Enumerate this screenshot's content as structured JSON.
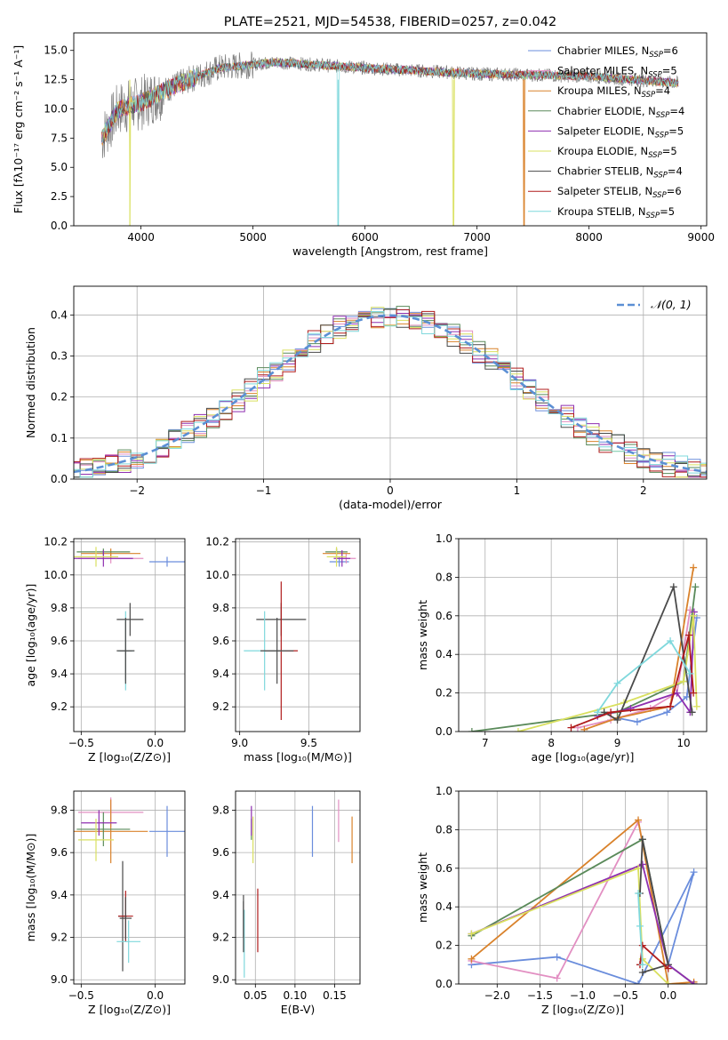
{
  "colors": [
    "#6a8ddc",
    "#e28fc2",
    "#d9822b",
    "#5a8a5a",
    "#8e2fb0",
    "#d9e060",
    "#4a4a4a",
    "#b01c1c",
    "#7fd8dc"
  ],
  "chart_data": [
    {
      "id": "spectrum",
      "type": "line",
      "title": "PLATE=2521, MJD=54538, FIBERID=0257, z=0.042",
      "xlabel": "wavelength [Angstrom, rest frame]",
      "ylabel": "Flux [fλ10⁻¹⁷ erg cm⁻² s⁻¹ A⁻¹]",
      "xlim": [
        3400,
        9050
      ],
      "ylim": [
        0,
        16.5
      ],
      "xticks": [
        4000,
        5000,
        6000,
        7000,
        8000,
        9000
      ],
      "yticks": [
        0.0,
        2.5,
        5.0,
        7.5,
        10.0,
        12.5,
        15.0
      ],
      "xtick_labels": [
        "4000",
        "5000",
        "6000",
        "7000",
        "8000",
        "9000"
      ],
      "ytick_labels": [
        "0.0",
        "2.5",
        "5.0",
        "7.5",
        "10.0",
        "12.5",
        "15.0"
      ],
      "legend_placement": "upper-right",
      "legend": [
        {
          "main": "Chabrier MILES, N",
          "sub": "SSP",
          "tail": "=6"
        },
        {
          "main": "Salpeter MILES, N",
          "sub": "SSP",
          "tail": "=5"
        },
        {
          "main": "Kroupa MILES, N",
          "sub": "SSP",
          "tail": "=4"
        },
        {
          "main": "Chabrier ELODIE, N",
          "sub": "SSP",
          "tail": "=4"
        },
        {
          "main": "Salpeter ELODIE, N",
          "sub": "SSP",
          "tail": "=5"
        },
        {
          "main": "Kroupa ELODIE, N",
          "sub": "SSP",
          "tail": "=5"
        },
        {
          "main": "Chabrier STELIB, N",
          "sub": "SSP",
          "tail": "=4"
        },
        {
          "main": "Salpeter STELIB, N",
          "sub": "SSP",
          "tail": "=6"
        },
        {
          "main": "Kroupa STELIB, N",
          "sub": "SSP",
          "tail": "=5"
        }
      ],
      "data_line": {
        "color": "#808080",
        "x_range": [
          3650,
          8800
        ],
        "note_mean": [
          [
            3650,
            7.5
          ],
          [
            3800,
            10
          ],
          [
            4000,
            10.5
          ],
          [
            4300,
            12
          ],
          [
            4700,
            13.5
          ],
          [
            5200,
            14
          ],
          [
            6000,
            13.5
          ],
          [
            7000,
            13
          ],
          [
            8000,
            12.8
          ],
          [
            8800,
            12.2
          ]
        ]
      },
      "model_range_x": [
        3650,
        8800
      ],
      "dips": [
        {
          "x": 3900,
          "series": 5
        },
        {
          "x": 5760,
          "series": 8
        },
        {
          "x": 6790,
          "series": 5
        },
        {
          "x": 7420,
          "series": 2
        }
      ]
    },
    {
      "id": "residuals",
      "type": "histogram",
      "xlabel": "(data-model)/error",
      "ylabel": "Normed distribution",
      "xlim": [
        -2.5,
        2.5
      ],
      "ylim": [
        0,
        0.47
      ],
      "xticks": [
        -2,
        -1,
        0,
        1,
        2
      ],
      "yticks": [
        0.0,
        0.1,
        0.2,
        0.3,
        0.4
      ],
      "xtick_labels": [
        "−2",
        "−1",
        "0",
        "1",
        "2"
      ],
      "ytick_labels": [
        "0.0",
        "0.1",
        "0.2",
        "0.3",
        "0.4"
      ],
      "grid": true,
      "legend": "𝒩(0, 1)",
      "legend_placement": "upper-right",
      "gaussian": {
        "mu": 0,
        "sigma": 1,
        "color": "#5b8fd4"
      },
      "bin_width": 0.1
    },
    {
      "id": "age-z",
      "type": "scatter-errorbar",
      "xlabel": "Z [log₁₀(Z/Z⊙)]",
      "ylabel": "age  [log₁₀(age/yr)]",
      "xlim": [
        -0.55,
        0.2
      ],
      "ylim": [
        9.05,
        10.22
      ],
      "xticks": [
        -0.5,
        0.0
      ],
      "yticks": [
        9.2,
        9.4,
        9.6,
        9.8,
        10.0,
        10.2
      ],
      "xtick_labels": [
        "−0.5",
        "0.0"
      ],
      "ytick_labels": [
        "9.2",
        "9.4",
        "9.6",
        "9.8",
        "10.0",
        "10.2"
      ],
      "points": [
        {
          "s": 0,
          "x": 0.08,
          "y": 10.08,
          "xe": 0.12,
          "ye": 0.03
        },
        {
          "s": 1,
          "x": -0.3,
          "y": 10.1,
          "xe": 0.22,
          "ye": 0.03
        },
        {
          "s": 2,
          "x": -0.3,
          "y": 10.13,
          "xe": 0.2,
          "ye": 0.03
        },
        {
          "s": 3,
          "x": -0.35,
          "y": 10.14,
          "xe": 0.18,
          "ye": 0.02
        },
        {
          "s": 4,
          "x": -0.35,
          "y": 10.1,
          "xe": 0.2,
          "ye": 0.05
        },
        {
          "s": 5,
          "x": -0.4,
          "y": 10.11,
          "xe": 0.15,
          "ye": 0.06
        },
        {
          "s": 6,
          "x": -0.17,
          "y": 9.73,
          "xe": 0.09,
          "ye": 0.1
        },
        {
          "s": 7,
          "x": -0.2,
          "y": 9.54,
          "xe": 0.04,
          "ye": 0.18
        },
        {
          "s": 8,
          "x": -0.2,
          "y": 9.54,
          "xe": 0.05,
          "ye": 0.24
        },
        {
          "s": 6,
          "x": -0.2,
          "y": 9.54,
          "xe": 0.06,
          "ye": 0.2
        }
      ]
    },
    {
      "id": "age-mass",
      "type": "scatter-errorbar",
      "xlabel": "mass [log₁₀(M/M⊙)]",
      "ylabel": "",
      "xlim": [
        8.97,
        9.87
      ],
      "ylim": [
        9.05,
        10.22
      ],
      "xticks": [
        9.0,
        9.5
      ],
      "yticks": [
        9.2,
        9.4,
        9.6,
        9.8,
        10.0,
        10.2
      ],
      "xtick_labels": [
        "9.0",
        "9.5"
      ],
      "ytick_labels": [
        "9.2",
        "9.4",
        "9.6",
        "9.8",
        "10.0",
        "10.2"
      ],
      "points": [
        {
          "s": 0,
          "x": 9.72,
          "y": 10.08,
          "xe": 0.07,
          "ye": 0.03
        },
        {
          "s": 1,
          "x": 9.77,
          "y": 10.1,
          "xe": 0.07,
          "ye": 0.03
        },
        {
          "s": 2,
          "x": 9.7,
          "y": 10.13,
          "xe": 0.1,
          "ye": 0.03
        },
        {
          "s": 3,
          "x": 9.7,
          "y": 10.14,
          "xe": 0.08,
          "ye": 0.02
        },
        {
          "s": 4,
          "x": 9.74,
          "y": 10.1,
          "xe": 0.06,
          "ye": 0.05
        },
        {
          "s": 5,
          "x": 9.7,
          "y": 10.11,
          "xe": 0.07,
          "ye": 0.06
        },
        {
          "s": 6,
          "x": 9.3,
          "y": 9.73,
          "xe": 0.18,
          "ye": 0.1
        },
        {
          "s": 7,
          "x": 9.3,
          "y": 9.54,
          "xe": 0.12,
          "ye": 0.42
        },
        {
          "s": 8,
          "x": 9.18,
          "y": 9.54,
          "xe": 0.15,
          "ye": 0.24
        },
        {
          "s": 6,
          "x": 9.27,
          "y": 9.54,
          "xe": 0.12,
          "ye": 0.2
        }
      ]
    },
    {
      "id": "massweight-age",
      "type": "line",
      "xlabel": "age  [log₁₀(age/yr)]",
      "ylabel": "mass weight",
      "xlim": [
        6.6,
        10.35
      ],
      "ylim": [
        0,
        1.0
      ],
      "xticks": [
        7,
        8,
        9,
        10
      ],
      "yticks": [
        0.0,
        0.2,
        0.4,
        0.6,
        0.8,
        1.0
      ],
      "xtick_labels": [
        "7",
        "8",
        "9",
        "10"
      ],
      "ytick_labels": [
        "0.0",
        "0.2",
        "0.4",
        "0.6",
        "0.8",
        "1.0"
      ],
      "grid": true,
      "series": [
        {
          "s": 0,
          "x": [
            9.0,
            9.3,
            9.75,
            10.05,
            10.2
          ],
          "y": [
            0.07,
            0.05,
            0.1,
            0.18,
            0.59
          ]
        },
        {
          "s": 1,
          "x": [
            8.4,
            8.9,
            9.5,
            9.9,
            10.1
          ],
          "y": [
            0.02,
            0.06,
            0.12,
            0.2,
            0.63
          ]
        },
        {
          "s": 2,
          "x": [
            8.5,
            9.0,
            9.8,
            10.15
          ],
          "y": [
            0.01,
            0.07,
            0.13,
            0.85
          ]
        },
        {
          "s": 3,
          "x": [
            6.8,
            9.0,
            10.0,
            10.18
          ],
          "y": [
            0.0,
            0.1,
            0.26,
            0.75
          ]
        },
        {
          "s": 4,
          "x": [
            8.7,
            9.2,
            9.9,
            10.1,
            10.16
          ],
          "y": [
            0.08,
            0.12,
            0.2,
            0.1,
            0.62
          ]
        },
        {
          "s": 5,
          "x": [
            7.5,
            9.1,
            10.0,
            10.15,
            10.2
          ],
          "y": [
            0.0,
            0.15,
            0.26,
            0.6,
            0.13
          ]
        },
        {
          "s": 6,
          "x": [
            8.8,
            9.0,
            9.85,
            10.13
          ],
          "y": [
            0.1,
            0.06,
            0.75,
            0.1
          ]
        },
        {
          "s": 7,
          "x": [
            8.3,
            8.9,
            9.8,
            10.08,
            10.15
          ],
          "y": [
            0.02,
            0.1,
            0.13,
            0.5,
            0.2
          ]
        },
        {
          "s": 8,
          "x": [
            8.7,
            9.0,
            9.8,
            10.1
          ],
          "y": [
            0.1,
            0.25,
            0.47,
            0.3
          ]
        }
      ]
    },
    {
      "id": "mass-z",
      "type": "scatter-errorbar",
      "xlabel": "Z [log₁₀(Z/Z⊙)]",
      "ylabel": "mass [log₁₀(M/M⊙)]",
      "xlim": [
        -0.55,
        0.2
      ],
      "ylim": [
        8.98,
        9.89
      ],
      "xticks": [
        -0.5,
        0.0
      ],
      "yticks": [
        9.0,
        9.2,
        9.4,
        9.6,
        9.8
      ],
      "xtick_labels": [
        "−0.5",
        "0.0"
      ],
      "ytick_labels": [
        "9.0",
        "9.2",
        "9.4",
        "9.6",
        "9.8"
      ],
      "points": [
        {
          "s": 0,
          "x": 0.08,
          "y": 9.7,
          "xe": 0.12,
          "ye": 0.12
        },
        {
          "s": 1,
          "x": -0.3,
          "y": 9.79,
          "xe": 0.22,
          "ye": 0.07
        },
        {
          "s": 2,
          "x": -0.3,
          "y": 9.7,
          "xe": 0.25,
          "ye": 0.15
        },
        {
          "s": 3,
          "x": -0.35,
          "y": 9.71,
          "xe": 0.18,
          "ye": 0.08
        },
        {
          "s": 4,
          "x": -0.38,
          "y": 9.74,
          "xe": 0.12,
          "ye": 0.06
        },
        {
          "s": 5,
          "x": -0.4,
          "y": 9.66,
          "xe": 0.12,
          "ye": 0.1
        },
        {
          "s": 6,
          "x": -0.22,
          "y": 9.3,
          "xe": 0.03,
          "ye": 0.26
        },
        {
          "s": 7,
          "x": -0.2,
          "y": 9.3,
          "xe": 0.05,
          "ye": 0.12
        },
        {
          "s": 8,
          "x": -0.18,
          "y": 9.18,
          "xe": 0.08,
          "ye": 0.1
        },
        {
          "s": 6,
          "x": -0.2,
          "y": 9.29,
          "xe": 0.04,
          "ye": 0.1
        }
      ]
    },
    {
      "id": "mass-ebv",
      "type": "scatter-errorbar",
      "xlabel": "E(B-V)",
      "ylabel": "",
      "xlim": [
        0.025,
        0.182
      ],
      "ylim": [
        8.98,
        9.89
      ],
      "xticks": [
        0.05,
        0.1,
        0.15
      ],
      "yticks": [
        9.0,
        9.2,
        9.4,
        9.6,
        9.8
      ],
      "xtick_labels": [
        "0.05",
        "0.10",
        "0.15"
      ],
      "ytick_labels": [
        "9.0",
        "9.2",
        "9.4",
        "9.6",
        "9.8"
      ],
      "points": [
        {
          "s": 0,
          "x": 0.122,
          "y": 9.7,
          "xe": 0,
          "ye": 0.12
        },
        {
          "s": 1,
          "x": 0.155,
          "y": 9.75,
          "xe": 0,
          "ye": 0.1
        },
        {
          "s": 2,
          "x": 0.172,
          "y": 9.66,
          "xe": 0,
          "ye": 0.11
        },
        {
          "s": 3,
          "x": 0.045,
          "y": 9.71,
          "xe": 0,
          "ye": 0.05
        },
        {
          "s": 4,
          "x": 0.045,
          "y": 9.75,
          "xe": 0,
          "ye": 0.07
        },
        {
          "s": 5,
          "x": 0.047,
          "y": 9.66,
          "xe": 0,
          "ye": 0.11
        },
        {
          "s": 6,
          "x": 0.035,
          "y": 9.3,
          "xe": 0,
          "ye": 0.1
        },
        {
          "s": 7,
          "x": 0.053,
          "y": 9.28,
          "xe": 0,
          "ye": 0.15
        },
        {
          "s": 8,
          "x": 0.036,
          "y": 9.17,
          "xe": 0,
          "ye": 0.16
        },
        {
          "s": 6,
          "x": 0.035,
          "y": 9.25,
          "xe": 0,
          "ye": 0.12
        }
      ]
    },
    {
      "id": "massweight-z",
      "type": "line",
      "xlabel": "Z [log₁₀(Z/Z⊙)]",
      "ylabel": "mass weight",
      "xlim": [
        -2.45,
        0.45
      ],
      "ylim": [
        0,
        1.0
      ],
      "xticks": [
        -2.0,
        -1.5,
        -1.0,
        -0.5,
        0.0
      ],
      "yticks": [
        0.0,
        0.2,
        0.4,
        0.6,
        0.8,
        1.0
      ],
      "xtick_labels": [
        "−2.0",
        "−1.5",
        "−1.0",
        "−0.5",
        "0.0"
      ],
      "ytick_labels": [
        "0.0",
        "0.2",
        "0.4",
        "0.6",
        "0.8",
        "1.0"
      ],
      "grid": true,
      "series": [
        {
          "s": 0,
          "x": [
            -2.3,
            -1.3,
            -0.35,
            0.3,
            0.0
          ],
          "y": [
            0.1,
            0.14,
            0.0,
            0.58,
            0.1
          ]
        },
        {
          "s": 1,
          "x": [
            -2.3,
            -1.3,
            -0.35,
            0.0,
            0.3
          ],
          "y": [
            0.12,
            0.03,
            0.84,
            0.1,
            0.0
          ]
        },
        {
          "s": 2,
          "x": [
            -2.3,
            -0.35,
            0.0,
            0.3
          ],
          "y": [
            0.13,
            0.85,
            0.0,
            0.01
          ]
        },
        {
          "s": 3,
          "x": [
            -2.3,
            -0.3,
            0.0,
            0.3
          ],
          "y": [
            0.25,
            0.75,
            0.1,
            0.0
          ]
        },
        {
          "s": 4,
          "x": [
            -2.3,
            -0.3,
            0.0,
            0.3
          ],
          "y": [
            0.26,
            0.62,
            0.1,
            0.0
          ]
        },
        {
          "s": 5,
          "x": [
            -2.3,
            -0.35,
            -0.3,
            0.0
          ],
          "y": [
            0.26,
            0.6,
            0.13,
            0.0
          ]
        },
        {
          "s": 6,
          "x": [
            -0.33,
            -0.3,
            0.0,
            -0.3
          ],
          "y": [
            0.47,
            0.75,
            0.1,
            0.06
          ]
        },
        {
          "s": 7,
          "x": [
            -0.33,
            -0.3,
            0.0
          ],
          "y": [
            0.1,
            0.2,
            0.08
          ]
        },
        {
          "s": 8,
          "x": [
            -0.35,
            -0.33,
            -0.3
          ],
          "y": [
            0.47,
            0.3,
            0.1
          ]
        }
      ]
    }
  ]
}
